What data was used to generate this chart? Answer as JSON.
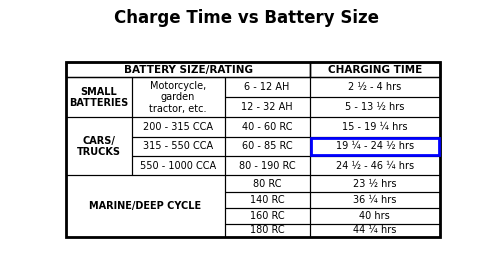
{
  "title": "Charge Time vs Battery Size",
  "rows": [
    {
      "cat": "SMALL\nBATTERIES",
      "sub": "Motorcycle,\ngarden\ntractor, etc.",
      "rating": "6 - 12 AH",
      "time": "2 ½ - 4 hrs",
      "highlight": false
    },
    {
      "cat": "",
      "sub": "",
      "rating": "12 - 32 AH",
      "time": "5 - 13 ½ hrs",
      "highlight": false
    },
    {
      "cat": "CARS/\nTRUCKS",
      "sub": "200 - 315 CCA",
      "rating": "40 - 60 RC",
      "time": "15 - 19 ¼ hrs",
      "highlight": false
    },
    {
      "cat": "",
      "sub": "315 - 550 CCA",
      "rating": "60 - 85 RC",
      "time": "19 ¼ - 24 ½ hrs",
      "highlight": true
    },
    {
      "cat": "",
      "sub": "550 - 1000 CCA",
      "rating": "80 - 190 RC",
      "time": "24 ½ - 46 ¼ hrs",
      "highlight": false
    },
    {
      "cat": "MARINE/DEEP CYCLE",
      "sub": "",
      "rating": "80 RC",
      "time": "23 ½ hrs",
      "highlight": false
    },
    {
      "cat": "",
      "sub": "",
      "rating": "140 RC",
      "time": "36 ¼ hrs",
      "highlight": false
    },
    {
      "cat": "",
      "sub": "",
      "rating": "160 RC",
      "time": "40 hrs",
      "highlight": false
    },
    {
      "cat": "",
      "sub": "",
      "rating": "180 RC",
      "time": "44 ¼ hrs",
      "highlight": false
    }
  ],
  "bg_color": "#ffffff",
  "highlight_color": "#0000ff",
  "title_fontsize": 12,
  "cell_fontsize": 7.0,
  "header_fontsize": 7.5
}
